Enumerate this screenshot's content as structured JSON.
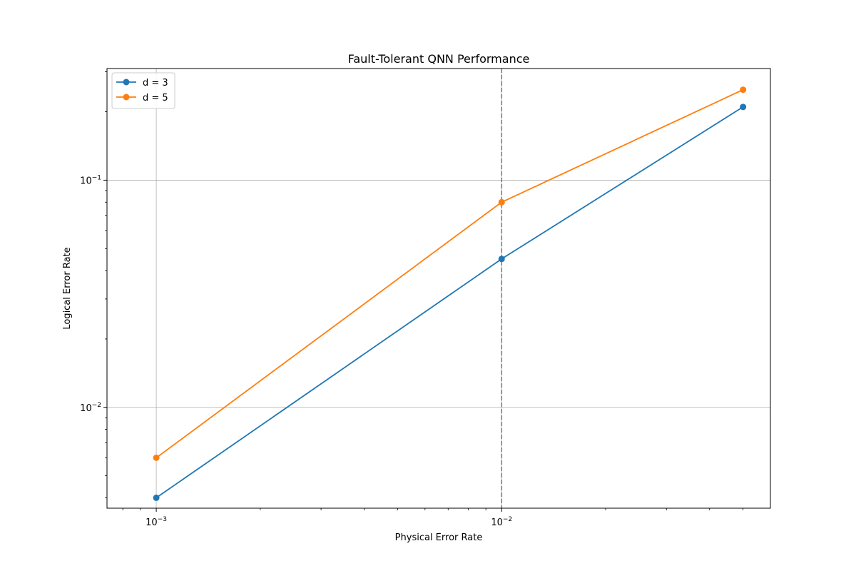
{
  "chart_data": {
    "type": "line",
    "title": "Fault-Tolerant QNN Performance",
    "xlabel": "Physical Error Rate",
    "ylabel": "Logical Error Rate",
    "x_scale": "log",
    "y_scale": "log",
    "xlim": [
      0.00072,
      0.06
    ],
    "ylim": [
      0.0036,
      0.31
    ],
    "x_ticks": [
      {
        "value": 0.001,
        "base": "10",
        "exp": "−3"
      },
      {
        "value": 0.01,
        "base": "10",
        "exp": "−2"
      }
    ],
    "y_ticks": [
      {
        "value": 0.01,
        "base": "10",
        "exp": "−2"
      },
      {
        "value": 0.1,
        "base": "10",
        "exp": "−1"
      }
    ],
    "grid": true,
    "legend_position": "upper-left",
    "series": [
      {
        "name": "d = 3",
        "color": "#1f77b4",
        "x": [
          0.001,
          0.01,
          0.05
        ],
        "y": [
          0.004,
          0.045,
          0.21
        ]
      },
      {
        "name": "d = 5",
        "color": "#ff7f0e",
        "x": [
          0.001,
          0.01,
          0.05
        ],
        "y": [
          0.006,
          0.08,
          0.25
        ]
      }
    ],
    "threshold_line": {
      "x": 0.01,
      "style": "dashed",
      "color": "#808080"
    }
  }
}
